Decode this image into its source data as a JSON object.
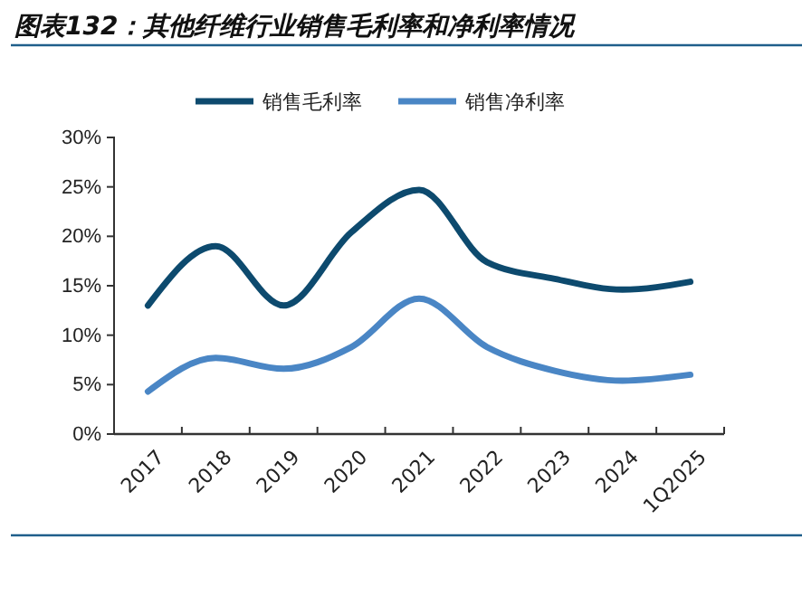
{
  "chart_data": {
    "type": "line",
    "title": "图表132：其他纤维行业销售毛利率和净利率情况",
    "categories": [
      "2017",
      "2018",
      "2019",
      "2020",
      "2021",
      "2022",
      "2023",
      "2024",
      "1Q2025"
    ],
    "series": [
      {
        "name": "销售毛利率",
        "color": "#0d4a6e",
        "values": [
          13.0,
          19.0,
          13.0,
          20.4,
          24.7,
          17.4,
          15.7,
          14.6,
          15.4
        ]
      },
      {
        "name": "销售净利率",
        "color": "#4a86c5",
        "values": [
          4.3,
          7.7,
          6.6,
          8.8,
          13.7,
          8.8,
          6.4,
          5.4,
          6.0
        ]
      }
    ],
    "ylim": [
      0,
      30
    ],
    "yticks": [
      {
        "value": 0,
        "label": "0%"
      },
      {
        "value": 5,
        "label": "5%"
      },
      {
        "value": 10,
        "label": "10%"
      },
      {
        "value": 15,
        "label": "15%"
      },
      {
        "value": 20,
        "label": "20%"
      },
      {
        "value": 25,
        "label": "25%"
      },
      {
        "value": 30,
        "label": "30%"
      }
    ],
    "grid": false,
    "legend": "top",
    "marker": "none",
    "line_style": "solid"
  }
}
